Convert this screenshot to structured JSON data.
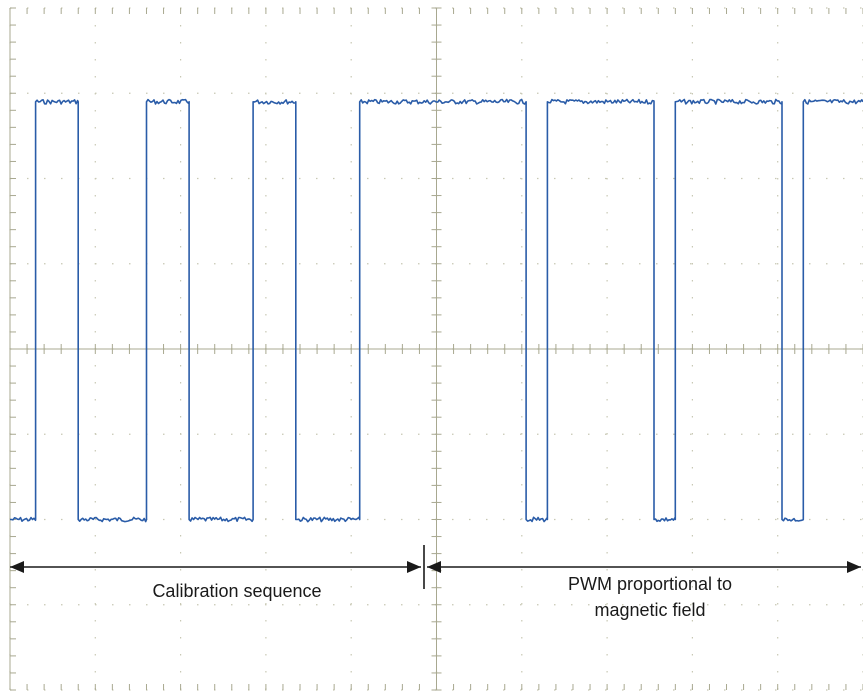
{
  "chart_data": {
    "type": "line",
    "grid": true,
    "grid_divisions": {
      "x": 10,
      "y": 8
    },
    "ylim": [
      0,
      8
    ],
    "xlim": [
      0,
      10
    ],
    "series": [
      {
        "color": "#2a5ca8",
        "high_level": 6.9,
        "low_level": 2.0,
        "points": [
          [
            0.0,
            2.0
          ],
          [
            0.3,
            2.0
          ],
          [
            0.3,
            6.9
          ],
          [
            0.8,
            6.9
          ],
          [
            0.8,
            2.0
          ],
          [
            1.6,
            2.0
          ],
          [
            1.6,
            6.9
          ],
          [
            2.1,
            6.9
          ],
          [
            2.1,
            2.0
          ],
          [
            2.85,
            2.0
          ],
          [
            2.85,
            6.9
          ],
          [
            3.35,
            6.9
          ],
          [
            3.35,
            2.0
          ],
          [
            4.1,
            2.0
          ],
          [
            4.1,
            6.9
          ],
          [
            6.05,
            6.9
          ],
          [
            6.05,
            2.0
          ],
          [
            6.3,
            2.0
          ],
          [
            6.3,
            6.9
          ],
          [
            7.55,
            6.9
          ],
          [
            7.55,
            2.0
          ],
          [
            7.8,
            2.0
          ],
          [
            7.8,
            6.9
          ],
          [
            9.05,
            6.9
          ],
          [
            9.05,
            2.0
          ],
          [
            9.3,
            2.0
          ],
          [
            9.3,
            6.9
          ],
          [
            10.0,
            6.9
          ]
        ]
      }
    ],
    "annotations": [
      {
        "text": "Calibration sequence",
        "x_start": 0.0,
        "x_end": 4.0
      },
      {
        "text": "PWM proportional to magnetic field",
        "line1": "PWM proportional to",
        "line2": "magnetic field",
        "x_start": 4.0,
        "x_end": 10.0
      }
    ],
    "colors": {
      "background": "#ffffff",
      "grid": "#c8c8b4",
      "axis": "#a8a890",
      "trace": "#2a5ca8",
      "annotation": "#1a1a1a"
    }
  }
}
